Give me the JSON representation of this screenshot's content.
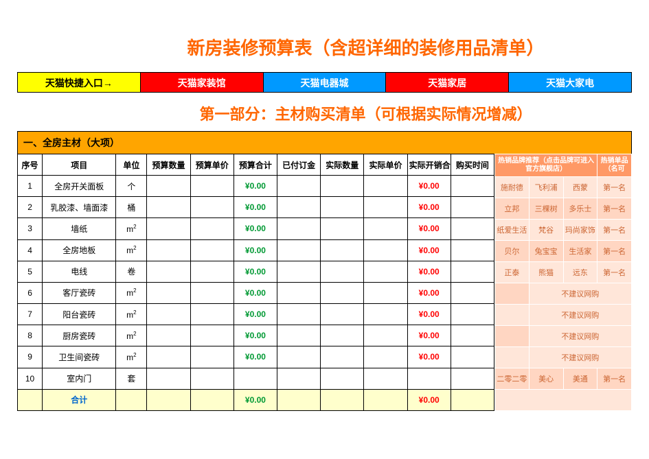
{
  "main_title": "新房装修预算表（含超详细的装修用品清单）",
  "nav": [
    {
      "label": "天猫快捷入口→",
      "cls": "nav-yellow"
    },
    {
      "label": "天猫家装馆",
      "cls": "nav-red"
    },
    {
      "label": "天猫电器城",
      "cls": "nav-blue"
    },
    {
      "label": "天猫家居",
      "cls": "nav-red"
    },
    {
      "label": "天猫大家电",
      "cls": "nav-blue"
    }
  ],
  "section_title": "第一部分：主材购买清单（可根据实际情况增减）",
  "orange_bar": "一、全房主材（大项）",
  "headers": {
    "seq": "序号",
    "item": "项目",
    "unit": "单位",
    "budget_qty": "预算数量",
    "budget_price": "预算单价",
    "budget_sum": "预算合计",
    "deposit": "已付订金",
    "actual_qty": "实际数量",
    "actual_price": "实际单价",
    "actual_sum": "实际开销合计",
    "buy_time": "购买时间"
  },
  "rec_headers": {
    "h1": "热销品牌推荐（点击品牌可进入官方旗舰店）",
    "h2": "热销单品（名可"
  },
  "rows": [
    {
      "seq": "1",
      "item": "全房开关面板",
      "unit": "个",
      "bs": "¥0.00",
      "as": "¥0.00",
      "rec": [
        "施耐德",
        "飞利浦",
        "西蒙"
      ],
      "rank": "第一名"
    },
    {
      "seq": "2",
      "item": "乳胶漆、墙面漆",
      "unit": "桶",
      "bs": "¥0.00",
      "as": "¥0.00",
      "rec": [
        "立邦",
        "三棵树",
        "多乐士"
      ],
      "rank": "第一名"
    },
    {
      "seq": "3",
      "item": "墙纸",
      "unit": "m²",
      "bs": "¥0.00",
      "as": "¥0.00",
      "rec": [
        "纸爱生活",
        "梵谷",
        "玛尚家饰"
      ],
      "rank": "第一名"
    },
    {
      "seq": "4",
      "item": "全房地板",
      "unit": "m²",
      "bs": "¥0.00",
      "as": "¥0.00",
      "rec": [
        "贝尔",
        "兔宝宝",
        "生活家"
      ],
      "rank": "第一名"
    },
    {
      "seq": "5",
      "item": "电线",
      "unit": "卷",
      "bs": "¥0.00",
      "as": "¥0.00",
      "rec": [
        "正泰",
        "熊猫",
        "远东"
      ],
      "rank": "第一名"
    },
    {
      "seq": "6",
      "item": "客厅瓷砖",
      "unit": "m²",
      "bs": "¥0.00",
      "as": "¥0.00",
      "no": "不建议网购"
    },
    {
      "seq": "7",
      "item": "阳台瓷砖",
      "unit": "m²",
      "bs": "¥0.00",
      "as": "¥0.00",
      "no": "不建议网购"
    },
    {
      "seq": "8",
      "item": "厨房瓷砖",
      "unit": "m²",
      "bs": "¥0.00",
      "as": "¥0.00",
      "no": "不建议网购"
    },
    {
      "seq": "9",
      "item": "卫生间瓷砖",
      "unit": "m²",
      "bs": "¥0.00",
      "as": "¥0.00",
      "no": "不建议网购"
    },
    {
      "seq": "10",
      "item": "室内门",
      "unit": "套",
      "bs": "",
      "as": "",
      "rec": [
        "二零二零",
        "美心",
        "美通"
      ],
      "rank": "第一名"
    }
  ],
  "total": {
    "label": "合计",
    "bs": "¥0.00",
    "as": "¥0.00"
  }
}
